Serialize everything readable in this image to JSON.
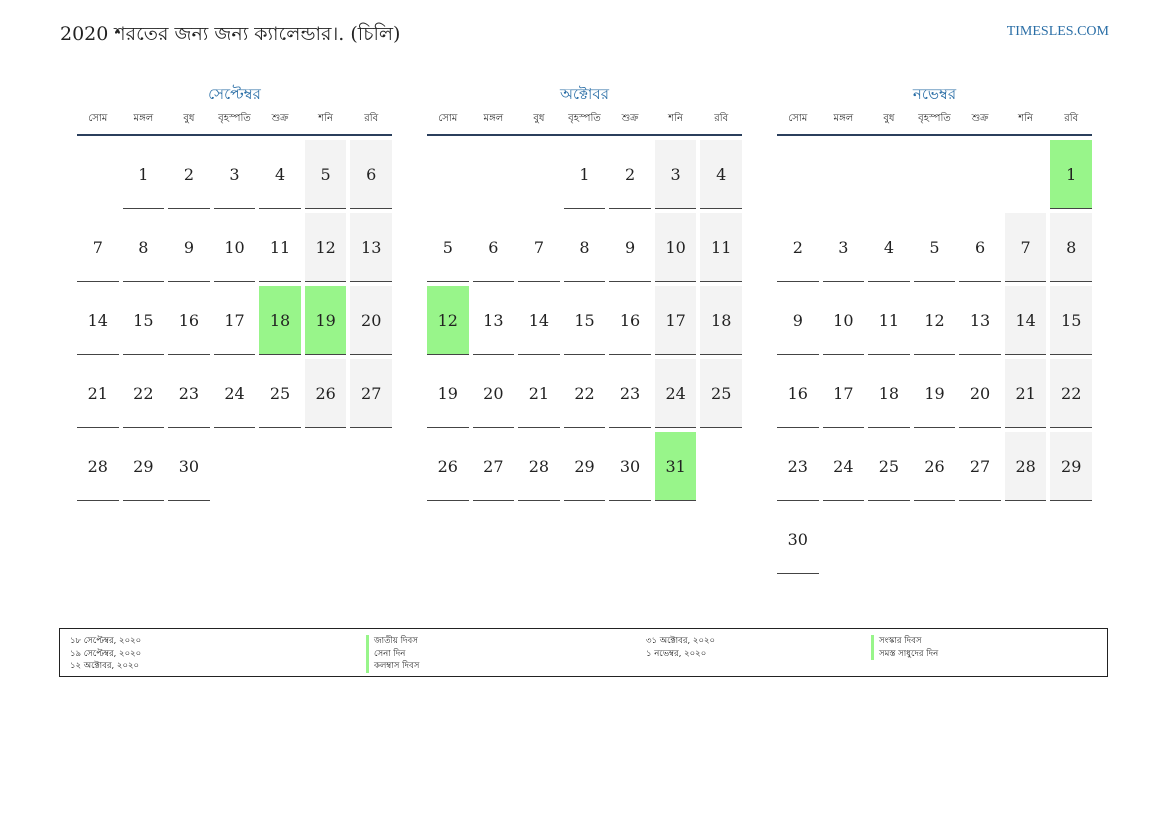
{
  "header": {
    "title": "2020 শরতের জন্য জন্য ক্যালেন্ডার।. (চিলি)",
    "site": "TIMESLES.COM"
  },
  "weekdays": [
    "সোম",
    "মঙ্গল",
    "বুধ",
    "বৃহস্পতি",
    "শুক্র",
    "শনি",
    "রবি"
  ],
  "colors": {
    "accent": "#2a6ea6",
    "holiday": "#98f58a",
    "weekend": "#f3f3f3"
  },
  "months": [
    {
      "name": "সেপ্টেম্বর",
      "start_offset": 1,
      "days": 30,
      "holidays": [
        18,
        19
      ]
    },
    {
      "name": "অক্টোবর",
      "start_offset": 3,
      "days": 31,
      "holidays": [
        12,
        31
      ]
    },
    {
      "name": "নভেম্বর",
      "start_offset": 6,
      "days": 30,
      "holidays": [
        1
      ]
    }
  ],
  "legend": {
    "dates_left": [
      "১৮ সেপ্টেম্বর, ২০২০",
      "১৯ সেপ্টেম্বর, ২০২০",
      "১২ অক্টোবর, ২০২০"
    ],
    "names_left": [
      "জাতীয় দিবস",
      "সেনা দিন",
      "কলম্বাস দিবস"
    ],
    "dates_right": [
      "৩১ অক্টোবর, ২০২০",
      "১ নভেম্বর, ২০২০"
    ],
    "names_right": [
      "সংস্কার দিবস",
      "সমস্ত সাধুদের দিন"
    ]
  }
}
